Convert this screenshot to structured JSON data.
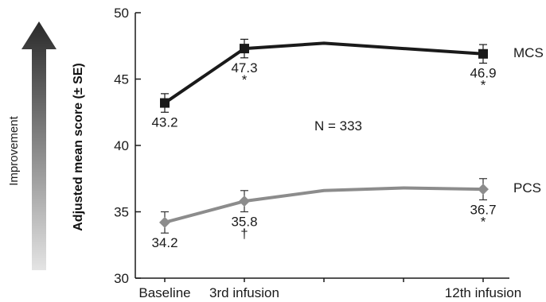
{
  "chart_data": {
    "type": "line",
    "ylabel": "Adjusted mean score (± SE)",
    "arrow_label": "Improvement",
    "annotation": "N = 333",
    "ylim": [
      30,
      50
    ],
    "yticks": [
      30,
      35,
      40,
      45,
      50
    ],
    "categories": [
      "Baseline",
      "3rd infusion",
      "",
      "",
      "12th infusion"
    ],
    "x": [
      0,
      1,
      2,
      3,
      4
    ],
    "colors": {
      "MCS": "#1a1a1a",
      "PCS": "#8c8c8c"
    },
    "series": [
      {
        "name": "MCS",
        "marker": "square",
        "values": [
          43.2,
          47.3,
          47.7,
          null,
          46.9
        ],
        "error": [
          0.7,
          0.7,
          null,
          null,
          0.7
        ],
        "data_labels": [
          "43.2",
          "47.3",
          "",
          "",
          "46.9"
        ],
        "significance": [
          "",
          "*",
          "",
          "",
          "*"
        ]
      },
      {
        "name": "PCS",
        "marker": "diamond",
        "values": [
          34.2,
          35.8,
          36.6,
          36.8,
          36.7
        ],
        "error": [
          0.8,
          0.8,
          null,
          null,
          0.8
        ],
        "data_labels": [
          "34.2",
          "35.8",
          "",
          "",
          "36.7"
        ],
        "significance": [
          "",
          "†",
          "",
          "",
          "*"
        ]
      }
    ]
  }
}
